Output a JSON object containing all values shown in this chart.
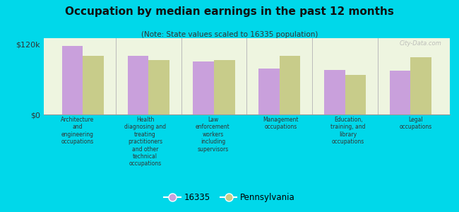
{
  "title": "Occupation by median earnings in the past 12 months",
  "subtitle": "(Note: State values scaled to 16335 population)",
  "categories": [
    "Architecture\nand\nengineering\noccupations",
    "Health\ndiagnosing and\ntreating\npractitioners\nand other\ntechnical\noccupations",
    "Law\nenforcement\nworkers\nincluding\nsupervisors",
    "Management\noccupations",
    "Education,\ntraining, and\nlibrary\noccupations",
    "Legal\noccupations"
  ],
  "values_16335": [
    117000,
    100000,
    90000,
    78000,
    76000,
    75000
  ],
  "values_pennsylvania": [
    100000,
    93000,
    93000,
    100000,
    67000,
    97000
  ],
  "color_16335": "#c9a0dc",
  "color_pennsylvania": "#c8cc8a",
  "ylim": [
    0,
    130000
  ],
  "ytick_labels": [
    "$0",
    "$120k"
  ],
  "ytick_vals": [
    0,
    120000
  ],
  "background_color": "#eef5e0",
  "outer_background": "#00d8ea",
  "legend_label_16335": "16335",
  "legend_label_pa": "Pennsylvania",
  "watermark": "City-Data.com"
}
